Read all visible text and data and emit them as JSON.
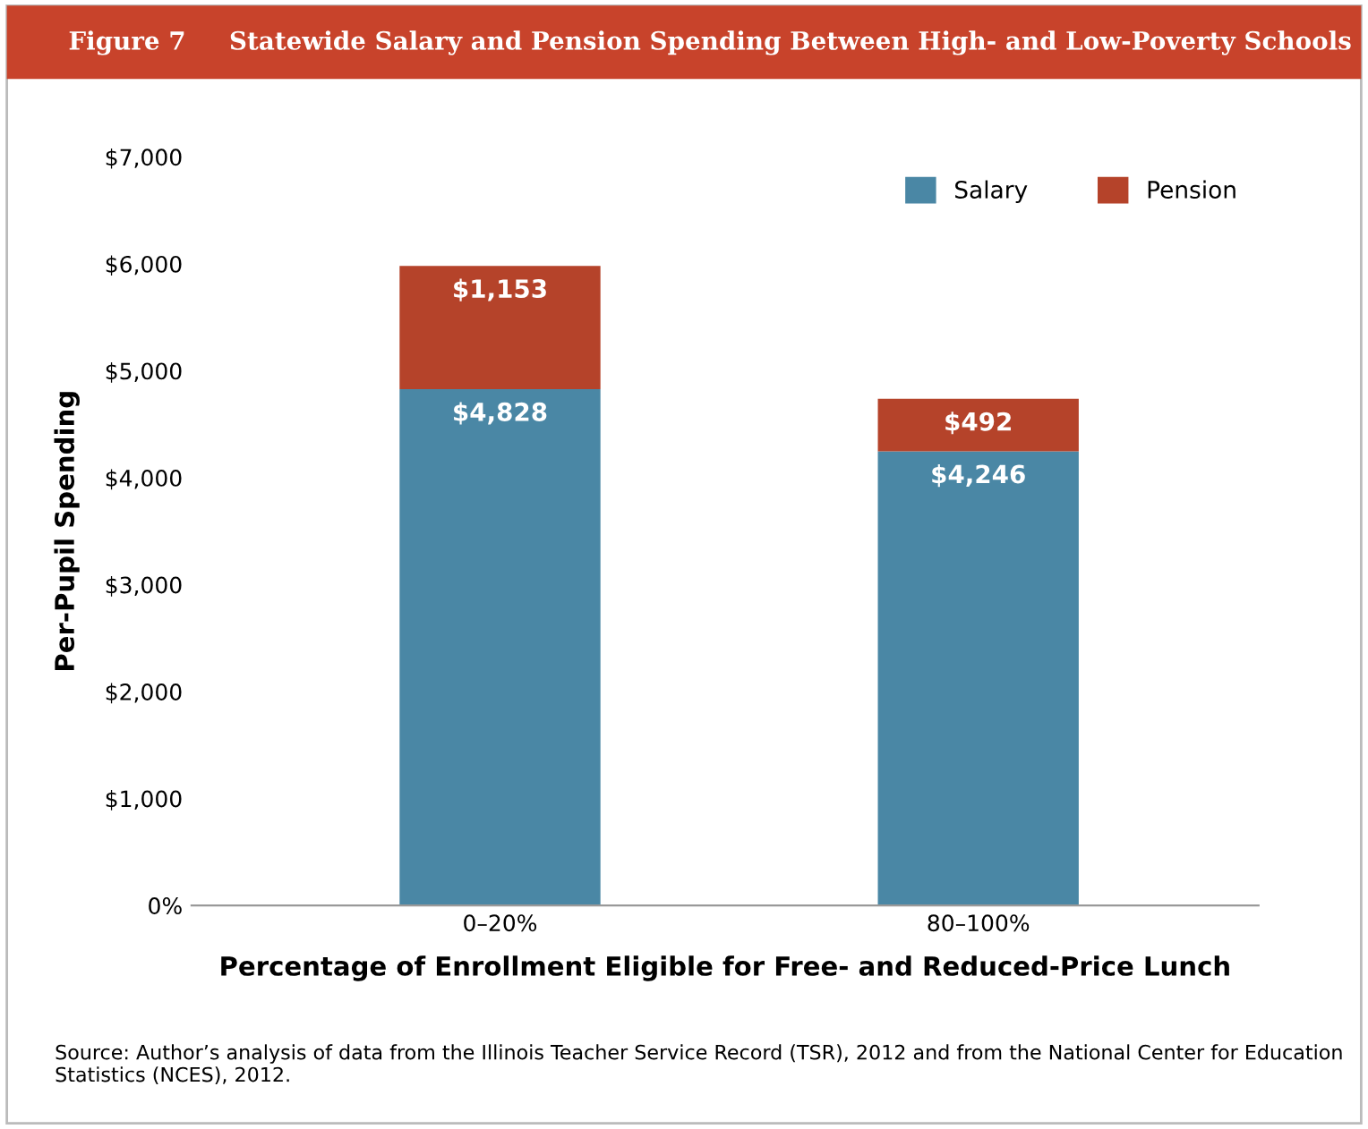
{
  "chart_data": {
    "type": "bar",
    "title": "Figure 7     Statewide Salary and Pension Spending Between High- and Low-Poverty Schools",
    "xlabel": "Percentage of Enrollment Eligible for Free- and Reduced-Price Lunch",
    "ylabel": "Per-Pupil Spending",
    "categories": [
      "0–20%",
      "80–100%"
    ],
    "series": [
      {
        "name": "Salary",
        "color": "#4a87a5",
        "values": [
          4828,
          4246
        ]
      },
      {
        "name": "Pension",
        "color": "#b5432a",
        "values": [
          1153,
          492
        ]
      }
    ],
    "value_labels": [
      [
        "$4,828",
        "$4,246"
      ],
      [
        "$1,153",
        "$492"
      ]
    ],
    "stacked": true,
    "ylim": [
      0,
      7000
    ],
    "yticks": [
      {
        "value": 0,
        "label": "0%"
      },
      {
        "value": 1000,
        "label": "$1,000"
      },
      {
        "value": 2000,
        "label": "$2,000"
      },
      {
        "value": 3000,
        "label": "$3,000"
      },
      {
        "value": 4000,
        "label": "$4,000"
      },
      {
        "value": 5000,
        "label": "$5,000"
      },
      {
        "value": 6000,
        "label": "$6,000"
      },
      {
        "value": 7000,
        "label": "$7,000"
      }
    ],
    "grid": false,
    "legend": "top right",
    "annotations": [
      "Source: Author’s analysis of data from the Illinois Teacher Service Record (TSR), 2012 and from the National Center for Education Statistics (NCES), 2012."
    ]
  }
}
